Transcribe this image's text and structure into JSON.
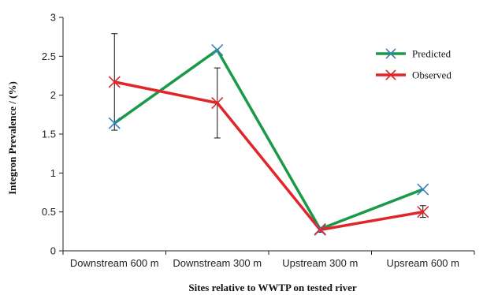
{
  "chart_data": {
    "type": "line",
    "title": "",
    "xlabel": "Sites relative to WWTP on tested river",
    "ylabel": "Integron Prevalence / (%)",
    "categories": [
      "Downstream 600 m",
      "Downstream 300 m",
      "Upstream 300 m",
      "Upsream 600 m"
    ],
    "ylim": [
      0,
      3
    ],
    "yticks": [
      "0",
      "0.5",
      "1",
      "1.5",
      "2",
      "2.5",
      "3"
    ],
    "grid": false,
    "legend_position": "top-right",
    "series": [
      {
        "name": "Predicted",
        "color": "#1a9a48",
        "marker_color": "#3a7fc4",
        "values": [
          1.64,
          2.58,
          0.28,
          0.79
        ]
      },
      {
        "name": "Observed",
        "color": "#e0262b",
        "marker_color": "#e0262b",
        "values": [
          2.17,
          1.9,
          0.27,
          0.5
        ],
        "error": [
          [
            1.55,
            2.79
          ],
          [
            1.45,
            2.35
          ],
          [
            0.24,
            0.3
          ],
          [
            0.43,
            0.58
          ]
        ]
      }
    ]
  }
}
